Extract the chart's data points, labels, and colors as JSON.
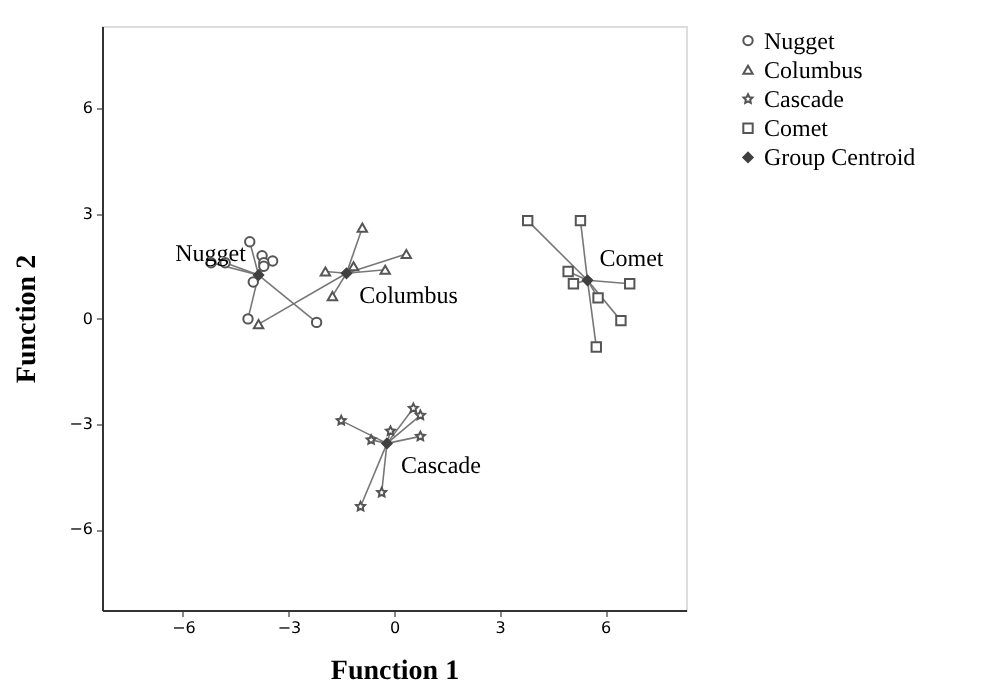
{
  "chart_data": {
    "type": "scatter",
    "xlabel": "Function 1",
    "ylabel": "Function 2",
    "xlim": [
      -8.3,
      8.3
    ],
    "ylim": [
      -8.3,
      8.35
    ],
    "xticks": [
      -6,
      -3,
      0,
      3,
      6
    ],
    "yticks": [
      -6,
      -3,
      0,
      3,
      6
    ],
    "grid": false,
    "legend": "top right",
    "series": [
      {
        "name": "Nugget",
        "color": "#555555",
        "marker": "circle",
        "x": [
          -4.1,
          -3.75,
          -3.45,
          -3.7,
          -4.0,
          -4.15,
          -2.2,
          -5.2,
          -4.8,
          -3.7
        ],
        "values": [
          2.2,
          1.8,
          1.65,
          1.6,
          1.05,
          0.0,
          -0.1,
          1.6,
          1.6,
          1.5
        ]
      },
      {
        "name": "Columbus",
        "color": "#555555",
        "marker": "triangle",
        "x": [
          -0.9,
          0.35,
          -0.25,
          -1.95,
          -1.75,
          -3.85,
          -1.15
        ],
        "values": [
          2.6,
          1.85,
          1.4,
          1.35,
          0.65,
          -0.15,
          1.5
        ]
      },
      {
        "name": "Cascade",
        "color": "#555555",
        "marker": "star",
        "x": [
          -1.5,
          -0.65,
          -0.1,
          0.55,
          0.75,
          0.75,
          -0.35,
          -0.95
        ],
        "values": [
          -2.9,
          -3.45,
          -3.2,
          -2.55,
          -2.75,
          -3.35,
          -4.95,
          -5.35
        ]
      },
      {
        "name": "Comet",
        "color": "#555555",
        "marker": "square",
        "x": [
          3.8,
          5.3,
          4.95,
          5.1,
          6.7,
          5.8,
          6.45,
          5.75
        ],
        "values": [
          2.8,
          2.8,
          1.35,
          1.0,
          1.0,
          0.6,
          -0.05,
          -0.8
        ]
      },
      {
        "name": "Group Centroid",
        "color": "#404040",
        "marker": "diamond",
        "x": [
          -3.85,
          -1.35,
          -0.2,
          5.5
        ],
        "values": [
          1.25,
          1.3,
          -3.55,
          1.1
        ]
      }
    ],
    "annotations": [
      {
        "text": "Nugget",
        "x": -3.85,
        "y": 1.25
      },
      {
        "text": "Columbus",
        "x": -1.35,
        "y": 1.3
      },
      {
        "text": "Cascade",
        "x": -0.2,
        "y": -3.55
      },
      {
        "text": "Comet",
        "x": 5.5,
        "y": 1.1
      }
    ]
  }
}
